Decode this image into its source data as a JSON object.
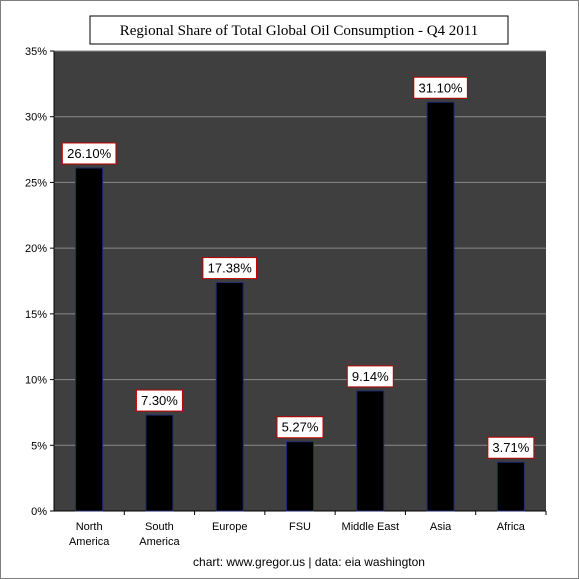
{
  "chart_data": {
    "type": "bar",
    "title": "Regional Share of Total Global Oil Consumption  -  Q4 2011",
    "categories": [
      [
        "North",
        "America"
      ],
      [
        "South",
        "America"
      ],
      [
        "Europe"
      ],
      [
        "FSU"
      ],
      [
        "Middle East"
      ],
      [
        "Asia"
      ],
      [
        "Africa"
      ]
    ],
    "values": [
      26.1,
      7.3,
      17.38,
      5.27,
      9.14,
      31.1,
      3.71
    ],
    "data_labels": [
      "26.10%",
      "7.30%",
      "17.38%",
      "5.27%",
      "9.14%",
      "31.10%",
      "3.71%"
    ],
    "y_ticks": [
      "0%",
      "5%",
      "10%",
      "15%",
      "20%",
      "25%",
      "30%",
      "35%"
    ],
    "ylim": [
      0,
      35
    ],
    "grid": true,
    "footer": "chart: www.gregor.us  |  data: eia washington",
    "colors": {
      "plot_background": "#3f3f3f",
      "gridline": "#8a8a8a",
      "bar_fill": "#000000",
      "bar_outline": "#1f2a6e",
      "label_border": "#c00000",
      "label_fill": "#ffffff"
    }
  }
}
